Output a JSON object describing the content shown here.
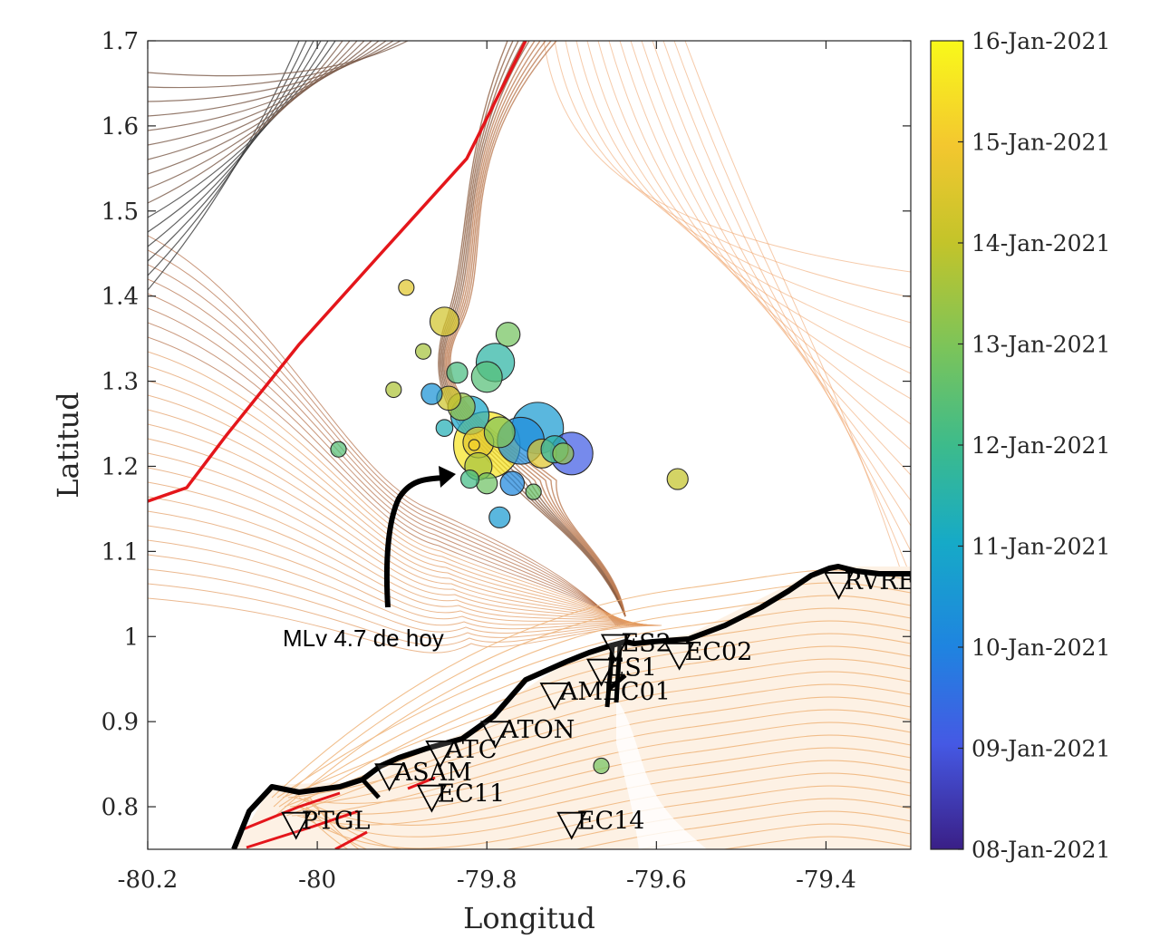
{
  "colors": {
    "trench": "#e4161b",
    "coast": "#000000",
    "bathy_far": "#d9803f",
    "bathy_near": "#8a5a3c",
    "land_contour": "#efb47a",
    "cb_top": "#f9f91a",
    "cb_mid": "#1aa0d6",
    "cb_bottom": "#3f1f8c"
  },
  "annotation": {
    "text": "MLv 4.7 de hoy"
  },
  "map_data": {
    "type": "scatter",
    "xlabel": "Longitud",
    "ylabel": "Latitud",
    "xlim": [
      -80.2,
      -79.3
    ],
    "ylim": [
      0.75,
      1.7
    ],
    "xticks": [
      -80.2,
      -80,
      -79.8,
      -79.6,
      -79.4
    ],
    "xtick_labels": [
      "-80.2",
      "-80",
      "-79.8",
      "-79.6",
      "-79.4"
    ],
    "yticks": [
      0.8,
      0.9,
      1.0,
      1.1,
      1.2,
      1.3,
      1.4,
      1.5,
      1.6,
      1.7
    ],
    "ytick_labels": [
      "0.8",
      "0.9",
      "1",
      "1.1",
      "1.2",
      "1.3",
      "1.4",
      "1.5",
      "1.6",
      "1.7"
    ],
    "colorbar": {
      "min_day": 0,
      "max_day": 8,
      "ticks": [
        {
          "day": 8,
          "label": "16-Jan-2021"
        },
        {
          "day": 7,
          "label": "15-Jan-2021"
        },
        {
          "day": 6,
          "label": "14-Jan-2021"
        },
        {
          "day": 5,
          "label": "13-Jan-2021"
        },
        {
          "day": 4,
          "label": "12-Jan-2021"
        },
        {
          "day": 3,
          "label": "11-Jan-2021"
        },
        {
          "day": 2,
          "label": "10-Jan-2021"
        },
        {
          "day": 1,
          "label": "09-Jan-2021"
        },
        {
          "day": 0,
          "label": "08-Jan-2021"
        }
      ]
    },
    "events": [
      {
        "lon": -79.74,
        "lat": 1.245,
        "mag": 4.6,
        "day": 2.6
      },
      {
        "lon": -79.76,
        "lat": 1.23,
        "mag": 4.4,
        "day": 2.2
      },
      {
        "lon": -79.7,
        "lat": 1.215,
        "mag": 4.2,
        "day": 1.1
      },
      {
        "lon": -79.79,
        "lat": 1.322,
        "mag": 4.0,
        "day": 3.6
      },
      {
        "lon": -79.82,
        "lat": 1.26,
        "mag": 4.0,
        "day": 2.9
      },
      {
        "lon": -79.8,
        "lat": 1.225,
        "mag": 5.2,
        "day": 7.6
      },
      {
        "lon": -79.81,
        "lat": 1.228,
        "mag": 3.6,
        "day": 6.6
      },
      {
        "lon": -79.85,
        "lat": 1.37,
        "mag": 3.5,
        "day": 6.3
      },
      {
        "lon": -79.775,
        "lat": 1.355,
        "mag": 3.2,
        "day": 4.9
      },
      {
        "lon": -79.8,
        "lat": 1.305,
        "mag": 3.6,
        "day": 4.4
      },
      {
        "lon": -79.83,
        "lat": 1.27,
        "mag": 3.4,
        "day": 5.4
      },
      {
        "lon": -79.845,
        "lat": 1.28,
        "mag": 3.2,
        "day": 6.2
      },
      {
        "lon": -79.865,
        "lat": 1.285,
        "mag": 3.0,
        "day": 2.4
      },
      {
        "lon": -79.835,
        "lat": 1.31,
        "mag": 3.0,
        "day": 4.2
      },
      {
        "lon": -79.785,
        "lat": 1.24,
        "mag": 3.6,
        "day": 5.1
      },
      {
        "lon": -79.77,
        "lat": 1.18,
        "mag": 3.2,
        "day": 2.1
      },
      {
        "lon": -79.735,
        "lat": 1.215,
        "mag": 3.5,
        "day": 6.6
      },
      {
        "lon": -79.72,
        "lat": 1.22,
        "mag": 3.4,
        "day": 3.6
      },
      {
        "lon": -79.71,
        "lat": 1.215,
        "mag": 3.0,
        "day": 5.3
      },
      {
        "lon": -79.81,
        "lat": 1.2,
        "mag": 3.4,
        "day": 5.6
      },
      {
        "lon": -79.8,
        "lat": 1.18,
        "mag": 3.0,
        "day": 4.8
      },
      {
        "lon": -79.82,
        "lat": 1.185,
        "mag": 2.8,
        "day": 4.1
      },
      {
        "lon": -79.745,
        "lat": 1.17,
        "mag": 2.6,
        "day": 4.7
      },
      {
        "lon": -79.785,
        "lat": 1.14,
        "mag": 3.0,
        "day": 2.6
      },
      {
        "lon": -79.85,
        "lat": 1.245,
        "mag": 2.7,
        "day": 3.3
      },
      {
        "lon": -79.875,
        "lat": 1.335,
        "mag": 2.6,
        "day": 5.6
      },
      {
        "lon": -79.895,
        "lat": 1.41,
        "mag": 2.6,
        "day": 6.6
      },
      {
        "lon": -79.91,
        "lat": 1.29,
        "mag": 2.6,
        "day": 5.7
      },
      {
        "lon": -79.975,
        "lat": 1.22,
        "mag": 2.6,
        "day": 4.4
      },
      {
        "lon": -79.575,
        "lat": 1.185,
        "mag": 3.0,
        "day": 6.0
      },
      {
        "lon": -79.665,
        "lat": 0.848,
        "mag": 2.6,
        "day": 4.9
      },
      {
        "lon": -79.815,
        "lat": 1.225,
        "mag": 2.2,
        "day": 7.2
      }
    ],
    "stations": [
      {
        "code": "RVRE",
        "lon": -79.385,
        "lat": 1.06
      },
      {
        "code": "ES2",
        "lon": -79.648,
        "lat": 0.987
      },
      {
        "code": "EC02",
        "lon": -79.573,
        "lat": 0.977
      },
      {
        "code": "ES1",
        "lon": -79.665,
        "lat": 0.958
      },
      {
        "code": "AMEC01",
        "lon": -79.72,
        "lat": 0.93
      },
      {
        "code": "ATON",
        "lon": -79.79,
        "lat": 0.885
      },
      {
        "code": "ATC",
        "lon": -79.855,
        "lat": 0.862
      },
      {
        "code": "ASAM",
        "lon": -79.915,
        "lat": 0.835
      },
      {
        "code": "EC11",
        "lon": -79.865,
        "lat": 0.81
      },
      {
        "code": "PTGL",
        "lon": -80.025,
        "lat": 0.778
      },
      {
        "code": "EC14",
        "lon": -79.7,
        "lat": 0.778
      }
    ]
  }
}
